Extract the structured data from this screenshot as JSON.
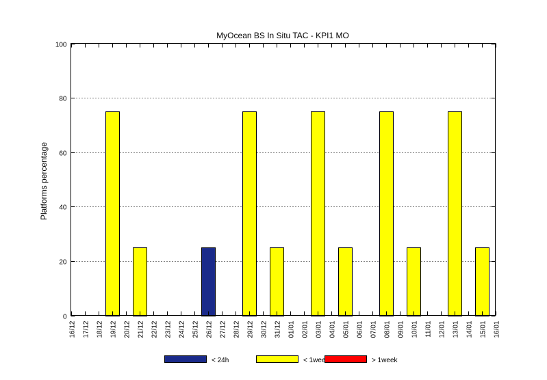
{
  "chart_data": {
    "type": "bar",
    "title": "MyOcean  BS In Situ TAC - KPI1  MO",
    "xlabel": "",
    "ylabel": "Platforms percentage",
    "ylim": [
      0,
      100
    ],
    "yticks": [
      0,
      20,
      40,
      60,
      80,
      100
    ],
    "grid": "horizontal dotted",
    "legend_position": "bottom",
    "categories": [
      "16/12",
      "17/12",
      "18/12",
      "19/12",
      "20/12",
      "21/12",
      "22/12",
      "23/12",
      "24/12",
      "25/12",
      "26/12",
      "27/12",
      "28/12",
      "29/12",
      "30/12",
      "31/12",
      "01/01",
      "02/01",
      "03/01",
      "04/01",
      "05/01",
      "06/01",
      "07/01",
      "08/01",
      "09/01",
      "10/01",
      "11/01",
      "12/01",
      "13/01",
      "14/01",
      "15/01",
      "16/01"
    ],
    "series": [
      {
        "name": "< 24h",
        "color": "#1a2a8a",
        "values": [
          0,
          0,
          0,
          0,
          0,
          0,
          0,
          0,
          0,
          0,
          25,
          0,
          0,
          0,
          0,
          0,
          0,
          0,
          0,
          0,
          0,
          0,
          0,
          0,
          0,
          0,
          0,
          0,
          0,
          0,
          0,
          0
        ]
      },
      {
        "name": "< 1week",
        "color": "#ffff00",
        "values": [
          0,
          0,
          0,
          75,
          0,
          25,
          0,
          0,
          0,
          0,
          0,
          0,
          0,
          75,
          0,
          25,
          0,
          0,
          75,
          0,
          25,
          0,
          0,
          75,
          0,
          25,
          0,
          0,
          75,
          0,
          25,
          0
        ]
      },
      {
        "name": "> 1week",
        "color": "#ff0000",
        "values": [
          0,
          0,
          0,
          0,
          0,
          0,
          0,
          0,
          0,
          0,
          0,
          0,
          0,
          0,
          0,
          0,
          0,
          0,
          0,
          0,
          0,
          0,
          0,
          0,
          0,
          0,
          0,
          0,
          0,
          0,
          0,
          0
        ]
      }
    ]
  }
}
